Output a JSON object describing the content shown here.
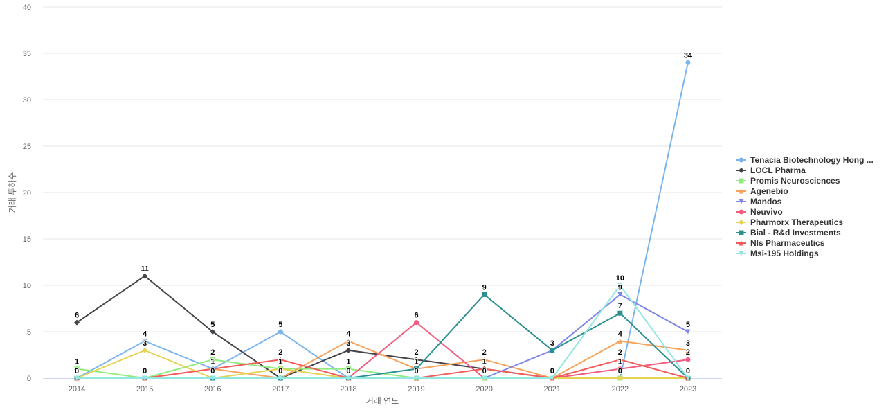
{
  "chart_data": {
    "type": "line",
    "title": "",
    "xlabel": "거래 연도",
    "ylabel": "거래 투하수",
    "x": [
      "2014",
      "2015",
      "2016",
      "2017",
      "2018",
      "2019",
      "2020",
      "2021",
      "2022",
      "2023"
    ],
    "ylim": [
      0,
      40
    ],
    "yticks": [
      "0",
      "5",
      "10",
      "15",
      "20",
      "25",
      "30",
      "35",
      "40"
    ],
    "grid": true,
    "legend_position": "right",
    "series": [
      {
        "name": "Tenacia Biotechnology Hong ...",
        "color": "#7cb5ec",
        "marker": "circle",
        "values": [
          0,
          4,
          1,
          5,
          0,
          0,
          0,
          0,
          0,
          34
        ]
      },
      {
        "name": "LOCL Pharma",
        "color": "#434348",
        "marker": "diamond",
        "values": [
          6,
          11,
          5,
          0,
          3,
          2,
          1,
          0,
          0,
          0
        ]
      },
      {
        "name": "Promis Neurosciences",
        "color": "#90ed7d",
        "marker": "square",
        "values": [
          1,
          0,
          2,
          1,
          1,
          0,
          0,
          0,
          0,
          0
        ]
      },
      {
        "name": "Agenebio",
        "color": "#f7a35c",
        "marker": "triangle",
        "values": [
          0,
          0,
          1,
          0,
          4,
          1,
          2,
          0,
          4,
          3
        ]
      },
      {
        "name": "Mandos",
        "color": "#8085e9",
        "marker": "triangle-down",
        "values": [
          0,
          0,
          0,
          0,
          0,
          0,
          0,
          3,
          9,
          5
        ]
      },
      {
        "name": "Neuvivo",
        "color": "#f15c80",
        "marker": "circle",
        "values": [
          0,
          0,
          0,
          0,
          0,
          6,
          0,
          0,
          1,
          2
        ]
      },
      {
        "name": "Pharmorx Therapeutics",
        "color": "#e4d354",
        "marker": "diamond",
        "values": [
          0,
          3,
          0,
          1,
          0,
          0,
          0,
          0,
          0,
          0
        ]
      },
      {
        "name": "Bial - R&d Investments",
        "color": "#2b908f",
        "marker": "square",
        "values": [
          0,
          0,
          0,
          0,
          0,
          1,
          9,
          3,
          7,
          0
        ]
      },
      {
        "name": "Nls Pharmaceutics",
        "color": "#f45b5b",
        "marker": "triangle",
        "values": [
          0,
          0,
          1,
          2,
          0,
          0,
          1,
          0,
          2,
          0
        ]
      },
      {
        "name": "Msi-195 Holdings",
        "color": "#91e8e1",
        "marker": "triangle-down",
        "values": [
          0,
          0,
          0,
          0,
          0,
          0,
          0,
          0,
          10,
          0
        ]
      }
    ],
    "data_labels": [
      {
        "x": "2014",
        "text": "6",
        "value": 6
      },
      {
        "x": "2014",
        "text": "1",
        "value": 1
      },
      {
        "x": "2014",
        "text": "0",
        "value": 0
      },
      {
        "x": "2015",
        "text": "11",
        "value": 11
      },
      {
        "x": "2015",
        "text": "4",
        "value": 4
      },
      {
        "x": "2015",
        "text": "3",
        "value": 3
      },
      {
        "x": "2015",
        "text": "0",
        "value": 0
      },
      {
        "x": "2016",
        "text": "5",
        "value": 5
      },
      {
        "x": "2016",
        "text": "2",
        "value": 2
      },
      {
        "x": "2016",
        "text": "1",
        "value": 1
      },
      {
        "x": "2016",
        "text": "0",
        "value": 0
      },
      {
        "x": "2017",
        "text": "5",
        "value": 5
      },
      {
        "x": "2017",
        "text": "2",
        "value": 2
      },
      {
        "x": "2017",
        "text": "1",
        "value": 1
      },
      {
        "x": "2017",
        "text": "0",
        "value": 0
      },
      {
        "x": "2018",
        "text": "4",
        "value": 4
      },
      {
        "x": "2018",
        "text": "3",
        "value": 3
      },
      {
        "x": "2018",
        "text": "1",
        "value": 1
      },
      {
        "x": "2018",
        "text": "0",
        "value": 0
      },
      {
        "x": "2019",
        "text": "6",
        "value": 6
      },
      {
        "x": "2019",
        "text": "2",
        "value": 2
      },
      {
        "x": "2019",
        "text": "1",
        "value": 1
      },
      {
        "x": "2019",
        "text": "0",
        "value": 0
      },
      {
        "x": "2020",
        "text": "9",
        "value": 9
      },
      {
        "x": "2020",
        "text": "2",
        "value": 2
      },
      {
        "x": "2020",
        "text": "1",
        "value": 1
      },
      {
        "x": "2020",
        "text": "0",
        "value": 0
      },
      {
        "x": "2021",
        "text": "3",
        "value": 3
      },
      {
        "x": "2021",
        "text": "0",
        "value": 0
      },
      {
        "x": "2022",
        "text": "10",
        "value": 10
      },
      {
        "x": "2022",
        "text": "9",
        "value": 9
      },
      {
        "x": "2022",
        "text": "7",
        "value": 7
      },
      {
        "x": "2022",
        "text": "4",
        "value": 4
      },
      {
        "x": "2022",
        "text": "2",
        "value": 2
      },
      {
        "x": "2022",
        "text": "1",
        "value": 1
      },
      {
        "x": "2022",
        "text": "0",
        "value": 0
      },
      {
        "x": "2023",
        "text": "34",
        "value": 34
      },
      {
        "x": "2023",
        "text": "5",
        "value": 5
      },
      {
        "x": "2023",
        "text": "3",
        "value": 3
      },
      {
        "x": "2023",
        "text": "2",
        "value": 2
      },
      {
        "x": "2023",
        "text": "0",
        "value": 0
      }
    ]
  }
}
